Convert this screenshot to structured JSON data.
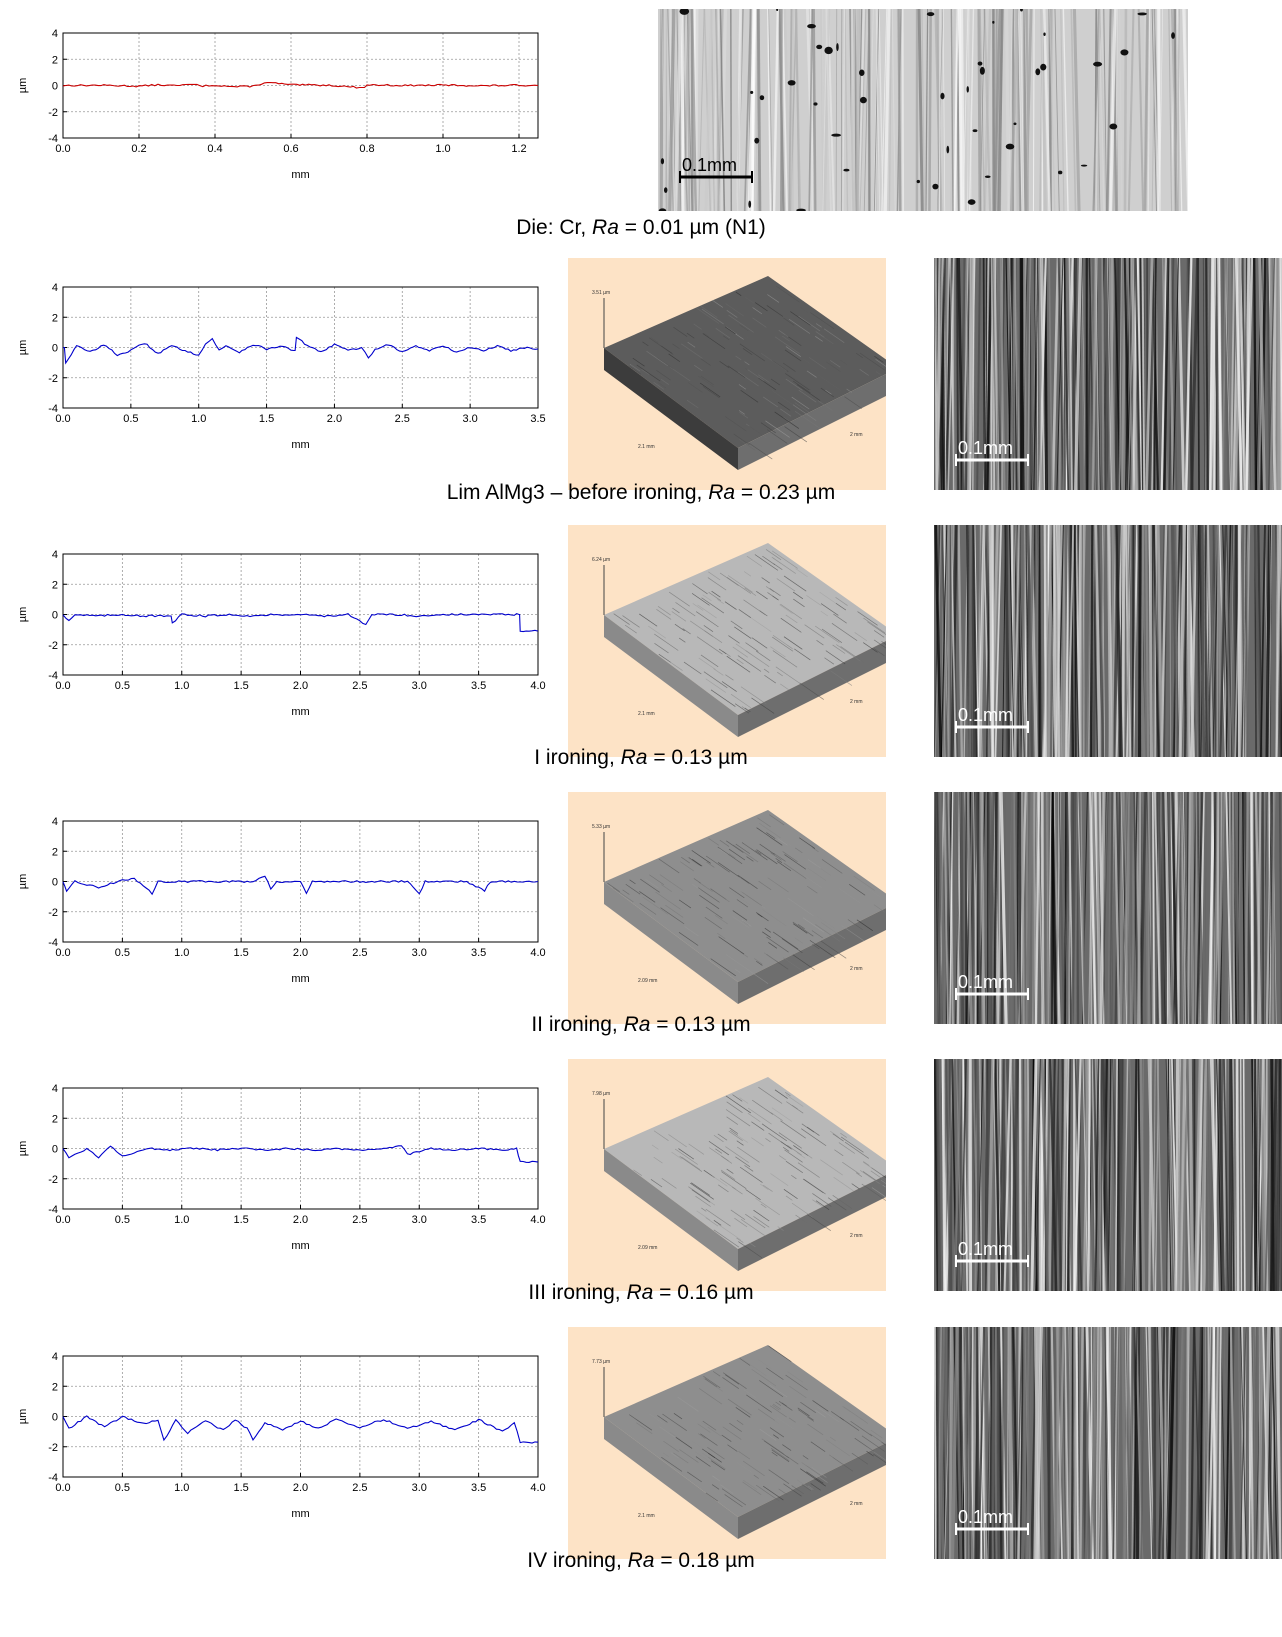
{
  "rows": [
    {
      "caption": {
        "prefix": "Die: Cr, ",
        "ra_symbol": "Ra",
        "suffix": " = 0.01 µm (N1)"
      },
      "profile": {
        "color": "#cc0000"
      },
      "micro": {
        "scale_label": "0.1mm",
        "scale_color": "#000000"
      },
      "surface3d": null,
      "chart_data": {
        "type": "line",
        "xlabel": "mm",
        "ylabel": "µm",
        "xlim": [
          0,
          1.25
        ],
        "ylim": [
          -4,
          4
        ],
        "xticks": [
          "0.0",
          "0.2",
          "0.4",
          "0.6",
          "0.8",
          "1.0",
          "1.2"
        ],
        "yticks": [
          "4",
          "2",
          "0",
          "-2",
          "-4"
        ],
        "grid": true,
        "series": [
          {
            "x": [
              0,
              0.1,
              0.2,
              0.25,
              0.3,
              0.33,
              0.36,
              0.4,
              0.45,
              0.5,
              0.53,
              0.56,
              0.6,
              0.7,
              0.78,
              0.8,
              0.9,
              1.0,
              1.1,
              1.2,
              1.25
            ],
            "y": [
              0,
              0.02,
              -0.05,
              0.05,
              -0.02,
              0.08,
              -0.05,
              0.03,
              -0.1,
              -0.05,
              0.2,
              0.18,
              0.05,
              0.02,
              -0.15,
              0.05,
              0.0,
              0.03,
              -0.02,
              0.02,
              0.0
            ]
          }
        ]
      }
    },
    {
      "caption": {
        "prefix": "Lim AlMg3 – before ironing, ",
        "ra_symbol": "Ra",
        "suffix": " = 0.23 µm"
      },
      "profile": {
        "color": "#0000cc"
      },
      "micro": {
        "scale_label": "0.1mm",
        "scale_color": "#ffffff"
      },
      "surface3d": {
        "height_label": "3.51 µm",
        "x_label": "2.1 mm",
        "y_label": "2 mm",
        "tone": "dark"
      },
      "chart_data": {
        "type": "line",
        "xlabel": "mm",
        "ylabel": "µm",
        "xlim": [
          0,
          3.5
        ],
        "ylim": [
          -4,
          4
        ],
        "xticks": [
          "0.0",
          "0.5",
          "1.0",
          "1.5",
          "2.0",
          "2.5",
          "3.0",
          "3.5"
        ],
        "yticks": [
          "4",
          "2",
          "0",
          "-2",
          "-4"
        ],
        "grid": true,
        "series": [
          {
            "x": [
              0,
              0.02,
              0.1,
              0.2,
              0.3,
              0.4,
              0.5,
              0.6,
              0.7,
              0.8,
              0.9,
              1.0,
              1.05,
              1.1,
              1.15,
              1.2,
              1.3,
              1.4,
              1.5,
              1.6,
              1.7,
              1.72,
              1.8,
              1.9,
              2.0,
              2.1,
              2.2,
              2.25,
              2.3,
              2.4,
              2.5,
              2.6,
              2.7,
              2.8,
              2.9,
              3.0,
              3.1,
              3.2,
              3.3,
              3.4,
              3.5
            ],
            "y": [
              0,
              -1.0,
              0.1,
              -0.3,
              0.2,
              -0.5,
              -0.2,
              0.3,
              -0.4,
              0.1,
              -0.2,
              -0.5,
              0.2,
              0.6,
              -0.2,
              0.1,
              -0.3,
              0.2,
              -0.1,
              0.1,
              -0.2,
              0.7,
              0.1,
              -0.3,
              0.2,
              -0.2,
              0.0,
              -0.7,
              -0.1,
              0.2,
              -0.3,
              0.1,
              -0.2,
              0.1,
              -0.3,
              0.0,
              -0.2,
              0.1,
              -0.2,
              0.0,
              -0.1
            ]
          }
        ]
      }
    },
    {
      "caption": {
        "prefix": "I ironing, ",
        "ra_symbol": "Ra",
        "suffix": " = 0.13 µm"
      },
      "profile": {
        "color": "#0000cc"
      },
      "micro": {
        "scale_label": "0.1mm",
        "scale_color": "#ffffff"
      },
      "surface3d": {
        "height_label": "6.24 µm",
        "x_label": "2.1 mm",
        "y_label": "2 mm",
        "tone": "light"
      },
      "chart_data": {
        "type": "line",
        "xlabel": "mm",
        "ylabel": "µm",
        "xlim": [
          0,
          4.0
        ],
        "ylim": [
          -4,
          4
        ],
        "xticks": [
          "0.0",
          "0.5",
          "1.0",
          "1.5",
          "2.0",
          "2.5",
          "3.0",
          "3.5",
          "4.0"
        ],
        "yticks": [
          "4",
          "2",
          "0",
          "-2",
          "-4"
        ],
        "grid": true,
        "series": [
          {
            "x": [
              0,
              0.05,
              0.1,
              0.3,
              0.5,
              0.7,
              0.9,
              0.92,
              1.0,
              1.2,
              1.4,
              1.6,
              1.8,
              2.0,
              2.2,
              2.4,
              2.55,
              2.6,
              2.8,
              3.0,
              3.2,
              3.4,
              3.6,
              3.8,
              3.84,
              3.85,
              4.0
            ],
            "y": [
              0,
              -0.4,
              0.0,
              -0.1,
              0.0,
              -0.1,
              -0.1,
              -0.6,
              0.0,
              -0.1,
              0.0,
              -0.1,
              0.0,
              0.0,
              -0.1,
              0.0,
              -0.7,
              0.0,
              0.0,
              -0.1,
              0.0,
              0.0,
              0.0,
              0.0,
              0.0,
              -1.1,
              -1.1
            ]
          }
        ]
      }
    },
    {
      "caption": {
        "prefix": "II ironing, ",
        "ra_symbol": "Ra",
        "suffix": " = 0.13 µm"
      },
      "profile": {
        "color": "#0000cc"
      },
      "micro": {
        "scale_label": "0.1mm",
        "scale_color": "#ffffff"
      },
      "surface3d": {
        "height_label": "5.33 µm",
        "x_label": "2.09 mm",
        "y_label": "2 mm",
        "tone": "mid"
      },
      "chart_data": {
        "type": "line",
        "xlabel": "mm",
        "ylabel": "µm",
        "xlim": [
          0,
          4.0
        ],
        "ylim": [
          -4,
          4
        ],
        "xticks": [
          "0.0",
          "0.5",
          "1.0",
          "1.5",
          "2.0",
          "2.5",
          "3.0",
          "3.5",
          "4.0"
        ],
        "yticks": [
          "4",
          "2",
          "0",
          "-2",
          "-4"
        ],
        "grid": true,
        "series": [
          {
            "x": [
              0,
              0.03,
              0.1,
              0.3,
              0.5,
              0.6,
              0.75,
              0.8,
              1.0,
              1.2,
              1.4,
              1.6,
              1.7,
              1.75,
              1.8,
              2.0,
              2.05,
              2.1,
              2.3,
              2.5,
              2.7,
              2.9,
              3.0,
              3.05,
              3.2,
              3.4,
              3.55,
              3.6,
              3.8,
              4.0
            ],
            "y": [
              0,
              -0.7,
              0.0,
              -0.4,
              0.1,
              0.2,
              -0.8,
              0.0,
              0.0,
              0.0,
              0.0,
              0.0,
              0.4,
              -0.5,
              0.0,
              0.0,
              -0.8,
              0.0,
              0.0,
              0.0,
              0.0,
              0.0,
              -0.8,
              0.0,
              0.0,
              0.0,
              -0.6,
              0.0,
              0.0,
              0.0
            ]
          }
        ]
      }
    },
    {
      "caption": {
        "prefix": "III ironing, ",
        "ra_symbol": "Ra",
        "suffix": " = 0.16 µm"
      },
      "profile": {
        "color": "#0000cc"
      },
      "micro": {
        "scale_label": "0.1mm",
        "scale_color": "#ffffff"
      },
      "surface3d": {
        "height_label": "7.98 µm",
        "x_label": "2.09 mm",
        "y_label": "2 mm",
        "tone": "light"
      },
      "chart_data": {
        "type": "line",
        "xlabel": "mm",
        "ylabel": "µm",
        "xlim": [
          0,
          4.0
        ],
        "ylim": [
          -4,
          4
        ],
        "xticks": [
          "0.0",
          "0.5",
          "1.0",
          "1.5",
          "2.0",
          "2.5",
          "3.0",
          "3.5",
          "4.0"
        ],
        "yticks": [
          "4",
          "2",
          "0",
          "-2",
          "-4"
        ],
        "grid": true,
        "series": [
          {
            "x": [
              0,
              0.05,
              0.2,
              0.3,
              0.4,
              0.5,
              0.7,
              0.9,
              1.1,
              1.3,
              1.5,
              1.7,
              1.9,
              2.1,
              2.3,
              2.5,
              2.7,
              2.85,
              2.9,
              3.1,
              3.3,
              3.5,
              3.7,
              3.82,
              3.85,
              4.0
            ],
            "y": [
              0,
              -0.6,
              0.0,
              -0.6,
              0.2,
              -0.5,
              0.0,
              -0.1,
              0.0,
              -0.1,
              0.0,
              -0.1,
              0.0,
              -0.1,
              0.0,
              -0.1,
              0.0,
              0.2,
              -0.4,
              0.0,
              -0.1,
              0.0,
              -0.1,
              0.0,
              -0.9,
              -0.9
            ]
          }
        ]
      }
    },
    {
      "caption": {
        "prefix": "IV ironing, ",
        "ra_symbol": "Ra",
        "suffix": " = 0.18 µm"
      },
      "profile": {
        "color": "#0000cc"
      },
      "micro": {
        "scale_label": "0.1mm",
        "scale_color": "#ffffff"
      },
      "surface3d": {
        "height_label": "7.73 µm",
        "x_label": "2.1 mm",
        "y_label": "2 mm",
        "tone": "mid"
      },
      "chart_data": {
        "type": "line",
        "xlabel": "mm",
        "ylabel": "µm",
        "xlim": [
          0,
          4.0
        ],
        "ylim": [
          -4,
          4
        ],
        "xticks": [
          "0.0",
          "0.5",
          "1.0",
          "1.5",
          "2.0",
          "2.5",
          "3.0",
          "3.5",
          "4.0"
        ],
        "yticks": [
          "4",
          "2",
          "0",
          "-2",
          "-4"
        ],
        "grid": true,
        "series": [
          {
            "x": [
              0,
              0.05,
              0.2,
              0.35,
              0.5,
              0.6,
              0.7,
              0.8,
              0.85,
              0.95,
              1.05,
              1.2,
              1.35,
              1.45,
              1.55,
              1.6,
              1.7,
              1.85,
              2.0,
              2.15,
              2.3,
              2.5,
              2.7,
              2.9,
              3.1,
              3.3,
              3.5,
              3.7,
              3.8,
              3.85,
              4.0
            ],
            "y": [
              0,
              -0.8,
              0.0,
              -0.7,
              0.0,
              -0.3,
              -0.5,
              -0.2,
              -1.6,
              -0.2,
              -1.1,
              -0.3,
              -0.9,
              -0.2,
              -0.8,
              -1.5,
              -0.4,
              -0.9,
              -0.3,
              -0.8,
              -0.2,
              -0.7,
              -0.2,
              -0.8,
              -0.3,
              -0.9,
              -0.2,
              -1.0,
              -0.4,
              -1.7,
              -1.7
            ]
          }
        ]
      }
    }
  ]
}
